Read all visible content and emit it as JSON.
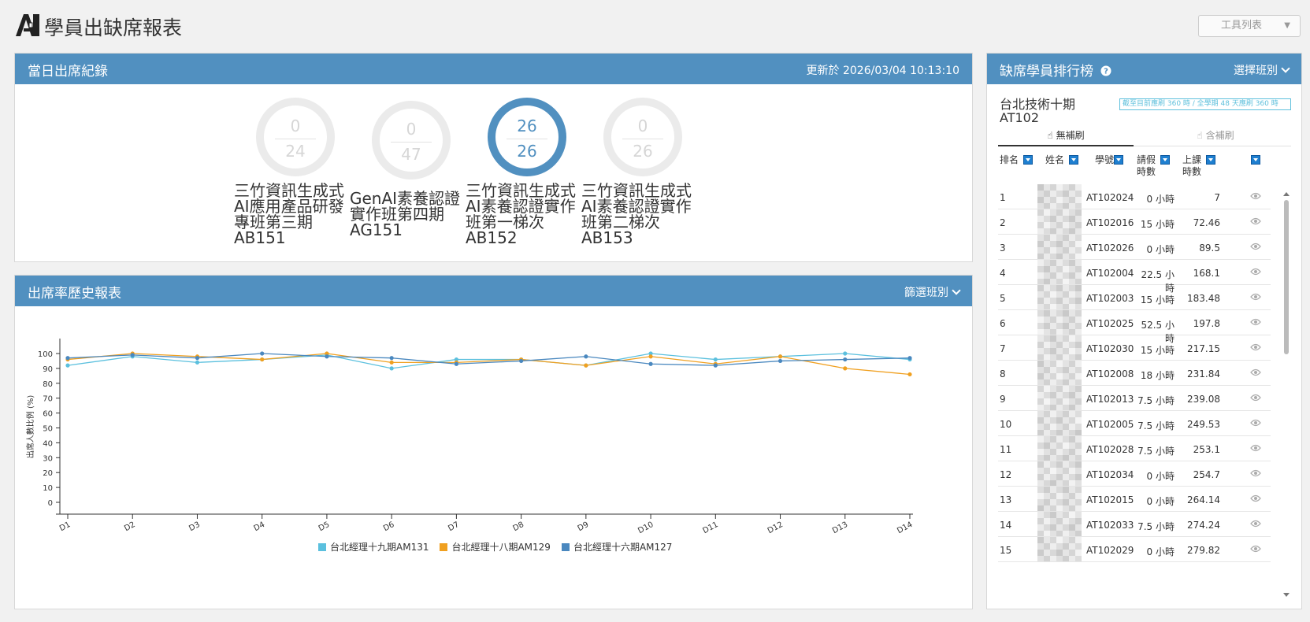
{
  "app": {
    "title": "學員出缺席報表",
    "toolbar_label": "工具列表"
  },
  "attendance": {
    "title": "當日出席紀錄",
    "updated": "更新於 2026/03/04 10:13:10",
    "courses": [
      {
        "present": "0",
        "total": "24",
        "line1": "三竹資訊生成式",
        "line2": "AI應用產品研發",
        "line3": "專班第三期",
        "code": "AB151",
        "active": false
      },
      {
        "present": "0",
        "total": "47",
        "line1": "GenAI素養認證",
        "line2": "實作班第四期",
        "line3": "",
        "code": "AG151",
        "active": false
      },
      {
        "present": "26",
        "total": "26",
        "line1": "三竹資訊生成式",
        "line2": "AI素養認證實作",
        "line3": "班第一梯次",
        "code": "AB152",
        "active": true
      },
      {
        "present": "0",
        "total": "26",
        "line1": "三竹資訊生成式",
        "line2": "AI素養認證實作",
        "line3": "班第二梯次",
        "code": "AB153",
        "active": false
      }
    ]
  },
  "history": {
    "title": "出席率歷史報表",
    "filter_label": "篩選班別"
  },
  "chart_data": {
    "type": "line",
    "ylabel": "出席人數比例 (%)",
    "ylim": [
      0,
      100
    ],
    "yticks": [
      "0",
      "10",
      "20",
      "30",
      "40",
      "50",
      "60",
      "70",
      "80",
      "90",
      "100"
    ],
    "categories": [
      "D1",
      "D2",
      "D3",
      "D4",
      "D5",
      "D6",
      "D7",
      "D8",
      "D9",
      "D10",
      "D11",
      "D12",
      "D13",
      "D14"
    ],
    "series": [
      {
        "name": "台北經理十九期AM131",
        "color": "#5bc0de",
        "values": [
          92,
          98,
          94,
          96,
          99,
          90,
          96,
          96,
          92,
          100,
          96,
          98,
          100,
          96
        ]
      },
      {
        "name": "台北經理十八期AM129",
        "color": "#f0a020",
        "values": [
          96,
          100,
          98,
          96,
          100,
          94,
          94,
          96,
          92,
          98,
          93,
          98,
          90,
          86
        ]
      },
      {
        "name": "台北經理十六期AM127",
        "color": "#4a88bf",
        "values": [
          97,
          99,
          97,
          100,
          98,
          97,
          93,
          95,
          98,
          93,
          92,
          95,
          96,
          97
        ]
      }
    ]
  },
  "ranking": {
    "title": "缺席學員排行榜",
    "help_icon": "question-circle-icon",
    "select_label": "選擇班別",
    "class_line1": "台北技術十期",
    "class_line2": "AT102",
    "quota_note": "截至目前應刷 360 時 / 全學期 48 天應刷 360 時",
    "tab_no_makeup": "無補刷",
    "tab_with_makeup": "含補刷",
    "headers": {
      "rank": "排名",
      "name": "姓名",
      "id": "學號",
      "leave1": "請假",
      "leave2": "時數",
      "hours1": "上課",
      "hours2": "時數"
    },
    "rows": [
      {
        "rank": "1",
        "id": "AT102024",
        "leave": "0 小時",
        "hours": "7"
      },
      {
        "rank": "2",
        "id": "AT102016",
        "leave": "15 小時",
        "hours": "72.46"
      },
      {
        "rank": "3",
        "id": "AT102026",
        "leave": "0 小時",
        "hours": "89.5"
      },
      {
        "rank": "4",
        "id": "AT102004",
        "leave": "22.5 小時",
        "hours": "168.1"
      },
      {
        "rank": "5",
        "id": "AT102003",
        "leave": "15 小時",
        "hours": "183.48"
      },
      {
        "rank": "6",
        "id": "AT102025",
        "leave": "52.5 小時",
        "hours": "197.8"
      },
      {
        "rank": "7",
        "id": "AT102030",
        "leave": "15 小時",
        "hours": "217.15"
      },
      {
        "rank": "8",
        "id": "AT102008",
        "leave": "18 小時",
        "hours": "231.84"
      },
      {
        "rank": "9",
        "id": "AT102013",
        "leave": "7.5 小時",
        "hours": "239.08"
      },
      {
        "rank": "10",
        "id": "AT102005",
        "leave": "7.5 小時",
        "hours": "249.53"
      },
      {
        "rank": "11",
        "id": "AT102028",
        "leave": "7.5 小時",
        "hours": "253.1"
      },
      {
        "rank": "12",
        "id": "AT102034",
        "leave": "0 小時",
        "hours": "254.7"
      },
      {
        "rank": "13",
        "id": "AT102015",
        "leave": "0 小時",
        "hours": "264.14"
      },
      {
        "rank": "14",
        "id": "AT102033",
        "leave": "7.5 小時",
        "hours": "274.24"
      },
      {
        "rank": "15",
        "id": "AT102029",
        "leave": "0 小時",
        "hours": "279.82"
      }
    ]
  }
}
